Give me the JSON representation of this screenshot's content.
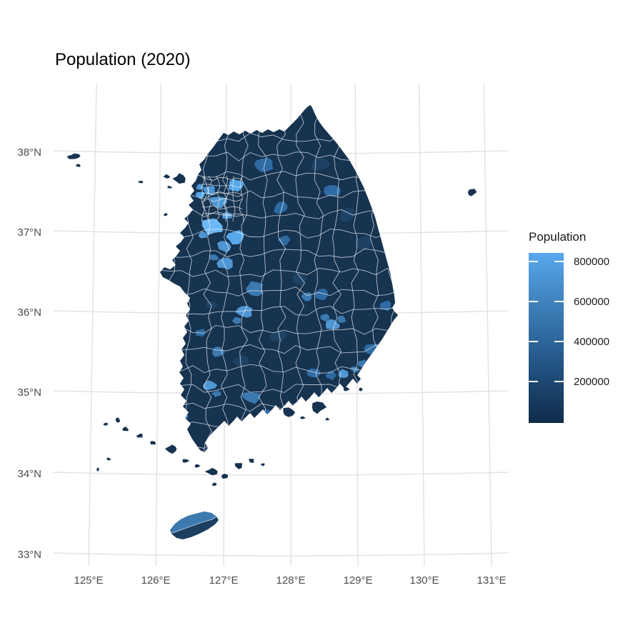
{
  "title": "Population (2020)",
  "axes": {
    "lon_ticks": [
      {
        "label": "125°E"
      },
      {
        "label": "126°E"
      },
      {
        "label": "127°E"
      },
      {
        "label": "128°E"
      },
      {
        "label": "129°E"
      },
      {
        "label": "130°E"
      },
      {
        "label": "131°E"
      }
    ],
    "lat_ticks": [
      {
        "label": "38°N"
      },
      {
        "label": "37°N"
      },
      {
        "label": "36°N"
      },
      {
        "label": "35°N"
      },
      {
        "label": "34°N"
      },
      {
        "label": "33°N"
      }
    ]
  },
  "legend": {
    "title": "Population",
    "ticks": [
      {
        "label": "800000"
      },
      {
        "label": "600000"
      },
      {
        "label": "400000"
      },
      {
        "label": "200000"
      }
    ],
    "gradient_stops": [
      "#58a9ef",
      "#4287c2",
      "#2e689e",
      "#1d4874",
      "#102c49"
    ]
  },
  "colors": {
    "background": "#ffffff",
    "grid": "#e3e3e3",
    "axis_text": "#4d4d4d",
    "title_text": "#000000",
    "legend_text": "#1a1a1a",
    "district_dark": "#163350",
    "district_dark_alt": "#1e4263",
    "boundary": "#e9eef3",
    "shade_light": "#6db8f7",
    "shade_light2": "#57a8eb",
    "shade_midlight": "#4f97d4",
    "shade_mid": "#3b79ae",
    "shade_middark": "#2f6ba3",
    "jeju_north": "#3b79ae",
    "jeju_south": "#1c3f60",
    "tick_mark": "#ffffff"
  },
  "chart_data": {
    "type": "choropleth_map",
    "title": "Population (2020)",
    "region": "South Korea, si/gun/gu districts",
    "legend_title": "Population",
    "colorbar": {
      "tick_values": [
        200000,
        400000,
        600000,
        800000
      ],
      "low_color": "#102c49",
      "high_color": "#58a9ef",
      "orientation": "vertical",
      "approx_range": [
        0,
        840000
      ]
    },
    "x_axis": {
      "label_type": "longitude",
      "ticks_deg_E": [
        125,
        126,
        127,
        128,
        129,
        130,
        131
      ]
    },
    "y_axis": {
      "label_type": "latitude",
      "ticks_deg_N": [
        38,
        37,
        36,
        35,
        34,
        33
      ]
    },
    "grid": "light gray graticule, white background",
    "notable_features": [
      "Seoul/Gyeonggi metropolitan cluster of small light-blue high-population districts",
      "Lightest district (~800k) southwest of Seoul (Hwaseong/Suwon area)",
      "Scattered medium-blue city districts: Chuncheon, Wonju, Gangneung, Cheonan, Cheongju, Daejeon, Jeonju, Gwangju, Daegu, Pohang, Ulsan, Gimhae, Changwon, Jinju, Busan area",
      "Jeju island two districts: lighter north (Jeju-si), dark south (Seogwipo-si)",
      "Most rural districts dark navy (low population)",
      "Small islands: Baengnyeongdo (northwest), Ulleungdo (east), southwestern archipelago"
    ]
  }
}
